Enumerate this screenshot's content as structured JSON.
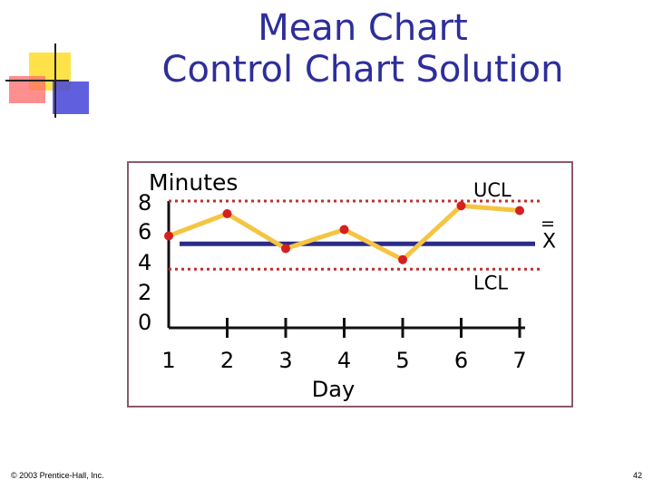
{
  "title": {
    "line1": "Mean Chart",
    "line2": "Control Chart Solution"
  },
  "footer": {
    "copyright": "© 2003 Prentice-Hall, Inc.",
    "page": "42"
  },
  "colors": {
    "title": "#2e2e9a",
    "series": "#f5c542",
    "points": "#d42020",
    "mean_line": "#2b2b8a",
    "limit_lines": "#c03030",
    "panel_border": "#8b5a6a"
  },
  "chart_data": {
    "type": "line",
    "ylabel": "Minutes",
    "xlabel": "Day",
    "x": [
      1,
      2,
      3,
      4,
      5,
      6,
      7
    ],
    "xticks": [
      "1",
      "2",
      "3",
      "4",
      "5",
      "6",
      "7"
    ],
    "yticks": [
      "8",
      "6",
      "4",
      "2",
      "0"
    ],
    "ylim": [
      0,
      8
    ],
    "series": [
      {
        "values": [
          5.8,
          7.2,
          5.0,
          6.2,
          4.3,
          7.7,
          7.4
        ]
      }
    ],
    "lines": {
      "ucl": {
        "label": "UCL",
        "value": 8
      },
      "mean": {
        "label": "X",
        "value": 5.3
      },
      "lcl": {
        "label": "LCL",
        "value": 3.7
      }
    }
  }
}
